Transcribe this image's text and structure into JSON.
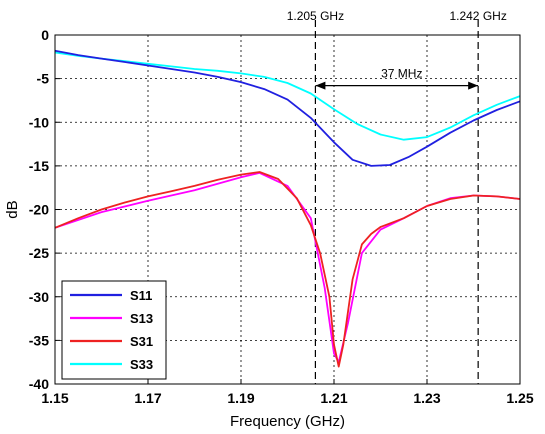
{
  "chart_data": {
    "type": "line",
    "title": "",
    "xlabel": "Frequency (GHz)",
    "ylabel": "dB",
    "xlim": [
      1.15,
      1.25
    ],
    "ylim": [
      -40,
      0
    ],
    "x_ticks": [
      "1.15",
      "1.17",
      "1.19",
      "1.21",
      "1.23",
      "1.25"
    ],
    "y_ticks": [
      "0",
      "-5",
      "-10",
      "-15",
      "-20",
      "-25",
      "-30",
      "-35",
      "-40"
    ],
    "grid": true,
    "legend_position": "bottom-left",
    "series": [
      {
        "name": "S11",
        "color": "#2020e0",
        "x": [
          1.15,
          1.155,
          1.16,
          1.165,
          1.17,
          1.175,
          1.18,
          1.185,
          1.19,
          1.195,
          1.2,
          1.205,
          1.21,
          1.214,
          1.218,
          1.222,
          1.226,
          1.23,
          1.235,
          1.24,
          1.245,
          1.25
        ],
        "y": [
          -1.8,
          -2.3,
          -2.7,
          -3.1,
          -3.5,
          -3.9,
          -4.3,
          -4.8,
          -5.4,
          -6.2,
          -7.4,
          -9.5,
          -12.3,
          -14.3,
          -15.0,
          -14.9,
          -14.0,
          -12.8,
          -11.2,
          -9.8,
          -8.6,
          -7.6
        ]
      },
      {
        "name": "S13",
        "color": "#ff00ff",
        "x": [
          1.15,
          1.16,
          1.17,
          1.18,
          1.19,
          1.194,
          1.2,
          1.205,
          1.208,
          1.21,
          1.211,
          1.213,
          1.216,
          1.22,
          1.225,
          1.23,
          1.235,
          1.24,
          1.245,
          1.25
        ],
        "y": [
          -22.1,
          -20.3,
          -19.0,
          -17.8,
          -16.3,
          -15.8,
          -17.3,
          -21.0,
          -29.0,
          -36.5,
          -37.5,
          -33.0,
          -25.0,
          -22.3,
          -21.0,
          -19.6,
          -18.7,
          -18.4,
          -18.5,
          -18.8
        ]
      },
      {
        "name": "S31",
        "color": "#ee2222",
        "x": [
          1.15,
          1.155,
          1.16,
          1.165,
          1.17,
          1.175,
          1.18,
          1.185,
          1.19,
          1.194,
          1.198,
          1.202,
          1.205,
          1.207,
          1.209,
          1.21,
          1.211,
          1.212,
          1.214,
          1.216,
          1.218,
          1.22,
          1.225,
          1.23,
          1.235,
          1.24,
          1.245,
          1.25
        ],
        "y": [
          -22.1,
          -21.0,
          -20.0,
          -19.2,
          -18.5,
          -17.9,
          -17.3,
          -16.6,
          -16.0,
          -15.7,
          -16.5,
          -18.7,
          -21.8,
          -25.0,
          -30.0,
          -35.5,
          -38.0,
          -35.5,
          -28.0,
          -24.0,
          -22.8,
          -22.0,
          -21.0,
          -19.6,
          -18.8,
          -18.4,
          -18.5,
          -18.8
        ]
      },
      {
        "name": "S33",
        "color": "#00ffff",
        "x": [
          1.15,
          1.155,
          1.16,
          1.165,
          1.17,
          1.175,
          1.18,
          1.185,
          1.19,
          1.195,
          1.2,
          1.205,
          1.21,
          1.215,
          1.22,
          1.225,
          1.23,
          1.235,
          1.24,
          1.245,
          1.25
        ],
        "y": [
          -2.0,
          -2.4,
          -2.7,
          -3.0,
          -3.3,
          -3.6,
          -3.9,
          -4.1,
          -4.4,
          -4.8,
          -5.5,
          -6.7,
          -8.5,
          -10.2,
          -11.4,
          -12.0,
          -11.7,
          -10.6,
          -9.2,
          -8.0,
          -7.0
        ]
      }
    ],
    "annotations": {
      "marker_left_label": "1.205 GHz",
      "marker_right_label": "1.242 GHz",
      "marker_left_x": 1.206,
      "marker_right_x": 1.241,
      "bandwidth_label": "37 MHz",
      "bandwidth_arrow_y": -5.8
    }
  }
}
